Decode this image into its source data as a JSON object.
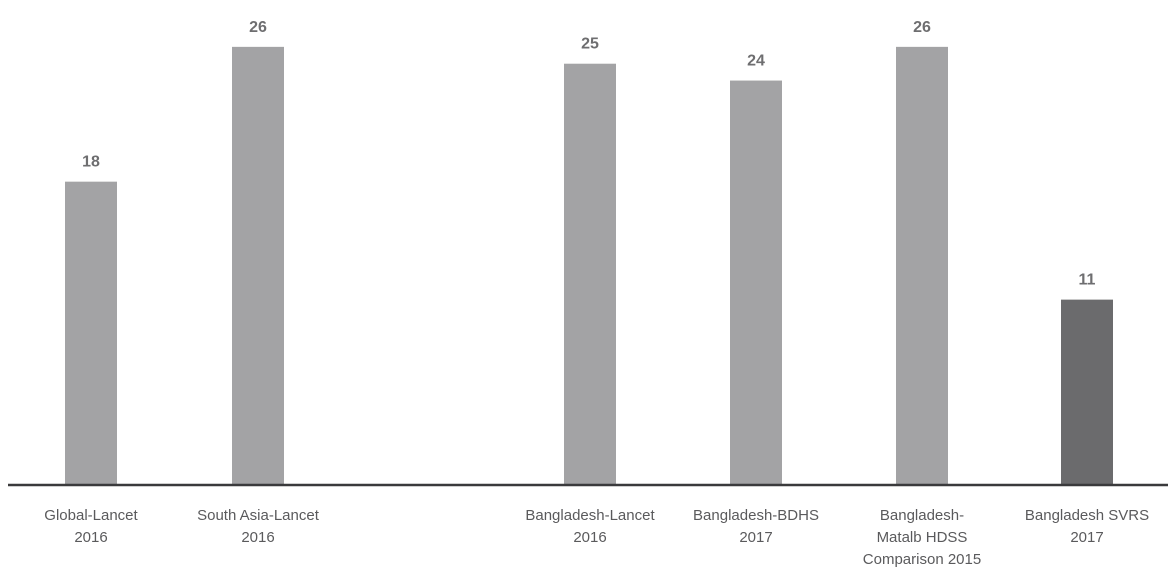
{
  "chart_data": {
    "type": "bar",
    "title": "",
    "xlabel": "",
    "ylabel": "",
    "ylim": [
      0,
      27
    ],
    "grid": false,
    "legend": "none",
    "categories": [
      [
        "Global-Lancet",
        "2016"
      ],
      [
        "South Asia-Lancet",
        "2016"
      ],
      [
        "Bangladesh-Lancet",
        "2016"
      ],
      [
        "Bangladesh-BDHS",
        "2017"
      ],
      [
        "Bangladesh-",
        "Matalb HDSS",
        "Comparison 2015"
      ],
      [
        "Bangladesh SVRS",
        "2017"
      ]
    ],
    "values": [
      18,
      26,
      25,
      24,
      26,
      11
    ],
    "value_labels": [
      "18",
      "26",
      "25",
      "24",
      "26",
      "11"
    ],
    "colors": {
      "bar": "#a3a3a5",
      "bar_highlight": "#6b6b6d",
      "axis": "#3a3a3c",
      "value_text": "#6e6e70",
      "tick_text": "#5a5a5c"
    },
    "highlight_index": 5
  }
}
